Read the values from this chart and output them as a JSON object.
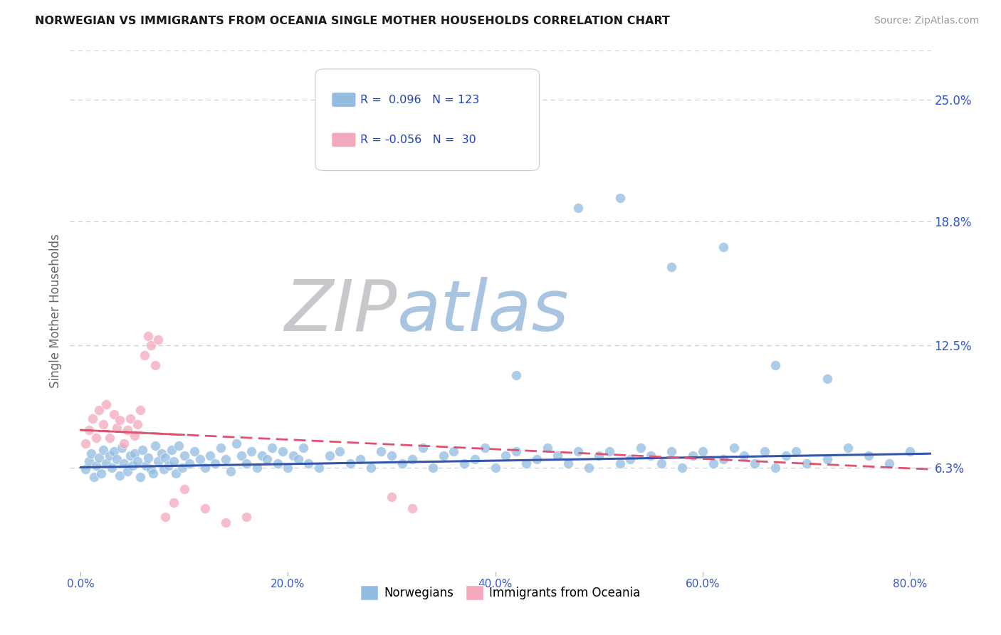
{
  "title": "NORWEGIAN VS IMMIGRANTS FROM OCEANIA SINGLE MOTHER HOUSEHOLDS CORRELATION CHART",
  "source": "Source: ZipAtlas.com",
  "xlabel_ticks": [
    "0.0%",
    "20.0%",
    "40.0%",
    "60.0%",
    "80.0%"
  ],
  "xlabel_vals": [
    0.0,
    0.2,
    0.4,
    0.6,
    0.8
  ],
  "ylabel_ticks": [
    "6.3%",
    "12.5%",
    "18.8%",
    "25.0%"
  ],
  "ylabel_vals": [
    0.063,
    0.125,
    0.188,
    0.25
  ],
  "ylabel_label": "Single Mother Households",
  "xlim": [
    -0.01,
    0.82
  ],
  "ylim": [
    0.01,
    0.275
  ],
  "legend_r1": "R =  0.096  N = 123",
  "legend_r2": "R = -0.056  N =  30",
  "dot_color_norwegian": "#92bce0",
  "dot_color_oceania": "#f4a8bc",
  "trend_norwegian_color": "#3355aa",
  "trend_oceania_color": "#e05070",
  "background_color": "#ffffff",
  "grid_color": "#c8d0dc",
  "title_color": "#1a1a1a",
  "axis_tick_color": "#3355cc",
  "right_label_color": "#3355cc",
  "watermark_zip_color": "#c8c8cc",
  "watermark_atlas_color": "#a8c4e0",
  "norwegians_x": [
    0.005,
    0.008,
    0.01,
    0.013,
    0.015,
    0.018,
    0.02,
    0.022,
    0.025,
    0.028,
    0.03,
    0.032,
    0.035,
    0.038,
    0.04,
    0.042,
    0.045,
    0.048,
    0.05,
    0.052,
    0.055,
    0.058,
    0.06,
    0.063,
    0.065,
    0.068,
    0.07,
    0.072,
    0.075,
    0.078,
    0.08,
    0.082,
    0.085,
    0.088,
    0.09,
    0.092,
    0.095,
    0.098,
    0.1,
    0.105,
    0.11,
    0.115,
    0.12,
    0.125,
    0.13,
    0.135,
    0.14,
    0.145,
    0.15,
    0.155,
    0.16,
    0.165,
    0.17,
    0.175,
    0.18,
    0.185,
    0.19,
    0.195,
    0.2,
    0.205,
    0.21,
    0.215,
    0.22,
    0.23,
    0.24,
    0.25,
    0.26,
    0.27,
    0.28,
    0.29,
    0.3,
    0.31,
    0.32,
    0.33,
    0.34,
    0.35,
    0.36,
    0.37,
    0.38,
    0.39,
    0.4,
    0.41,
    0.42,
    0.43,
    0.44,
    0.45,
    0.46,
    0.47,
    0.48,
    0.49,
    0.5,
    0.51,
    0.52,
    0.53,
    0.54,
    0.55,
    0.56,
    0.57,
    0.58,
    0.59,
    0.6,
    0.61,
    0.62,
    0.63,
    0.64,
    0.65,
    0.66,
    0.67,
    0.68,
    0.69,
    0.7,
    0.72,
    0.74,
    0.76,
    0.78,
    0.8,
    0.42,
    0.48,
    0.52,
    0.57,
    0.62,
    0.67,
    0.72
  ],
  "norwegians_y": [
    0.062,
    0.066,
    0.07,
    0.058,
    0.064,
    0.068,
    0.06,
    0.072,
    0.065,
    0.069,
    0.063,
    0.071,
    0.067,
    0.059,
    0.073,
    0.065,
    0.061,
    0.069,
    0.064,
    0.07,
    0.066,
    0.058,
    0.072,
    0.064,
    0.068,
    0.062,
    0.06,
    0.074,
    0.066,
    0.07,
    0.062,
    0.068,
    0.064,
    0.072,
    0.066,
    0.06,
    0.074,
    0.063,
    0.069,
    0.065,
    0.071,
    0.067,
    0.063,
    0.069,
    0.065,
    0.073,
    0.067,
    0.061,
    0.075,
    0.069,
    0.065,
    0.071,
    0.063,
    0.069,
    0.067,
    0.073,
    0.065,
    0.071,
    0.063,
    0.069,
    0.067,
    0.073,
    0.065,
    0.063,
    0.069,
    0.071,
    0.065,
    0.067,
    0.063,
    0.071,
    0.069,
    0.065,
    0.067,
    0.073,
    0.063,
    0.069,
    0.071,
    0.065,
    0.067,
    0.073,
    0.063,
    0.069,
    0.071,
    0.065,
    0.067,
    0.073,
    0.069,
    0.065,
    0.071,
    0.063,
    0.069,
    0.071,
    0.065,
    0.067,
    0.073,
    0.069,
    0.065,
    0.071,
    0.063,
    0.069,
    0.071,
    0.065,
    0.067,
    0.073,
    0.069,
    0.065,
    0.071,
    0.063,
    0.069,
    0.071,
    0.065,
    0.067,
    0.073,
    0.069,
    0.065,
    0.071,
    0.11,
    0.195,
    0.2,
    0.165,
    0.175,
    0.115,
    0.108
  ],
  "oceania_x": [
    0.005,
    0.008,
    0.012,
    0.015,
    0.018,
    0.022,
    0.025,
    0.028,
    0.032,
    0.035,
    0.038,
    0.042,
    0.045,
    0.048,
    0.052,
    0.055,
    0.058,
    0.062,
    0.065,
    0.068,
    0.072,
    0.075,
    0.082,
    0.09,
    0.1,
    0.12,
    0.14,
    0.16,
    0.3,
    0.32
  ],
  "oceania_y": [
    0.075,
    0.082,
    0.088,
    0.078,
    0.092,
    0.085,
    0.095,
    0.078,
    0.09,
    0.083,
    0.087,
    0.075,
    0.082,
    0.088,
    0.079,
    0.085,
    0.092,
    0.12,
    0.13,
    0.125,
    0.115,
    0.128,
    0.038,
    0.045,
    0.052,
    0.042,
    0.035,
    0.038,
    0.048,
    0.042
  ],
  "trend_nor_x0": 0.0,
  "trend_nor_x1": 0.82,
  "trend_nor_y0": 0.063,
  "trend_nor_y1": 0.07,
  "trend_oce_x0": 0.0,
  "trend_oce_x1": 0.82,
  "trend_oce_y0": 0.082,
  "trend_oce_y1": 0.062
}
